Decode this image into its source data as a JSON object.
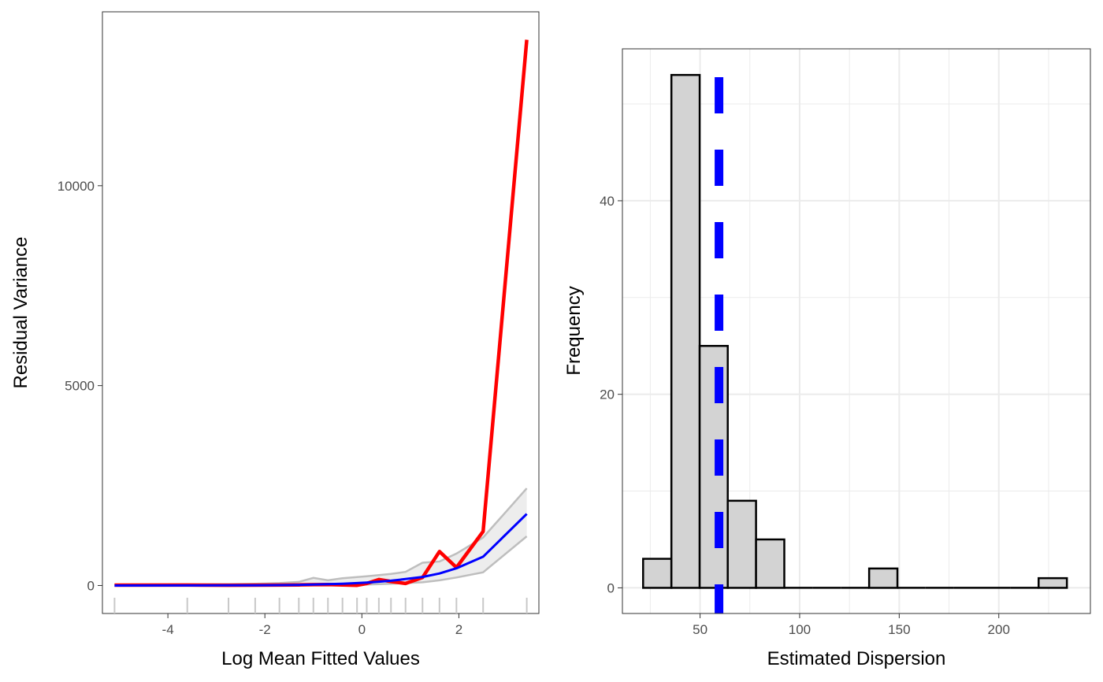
{
  "colors": {
    "observed": "#ff0000",
    "expected": "#0000ff",
    "band": "#ededed",
    "band_edge": "#bebebe",
    "hist_fill": "#d3d3d3",
    "hist_edge": "#000000",
    "dispersion_line": "#0000ff",
    "grid": "#ebebeb",
    "rug": "#c8c8c8"
  },
  "chart_data": [
    {
      "type": "line",
      "xlabel": "Log Mean Fitted Values",
      "ylabel": "Residual Variance",
      "xlim": [
        -5.35,
        3.65
      ],
      "ylim": [
        -700,
        14350
      ],
      "grid": false,
      "x_ticks": [
        -4,
        -2,
        0,
        2
      ],
      "x_tick_labels": [
        "-4",
        "-2",
        "0",
        "2"
      ],
      "y_ticks": [
        0,
        5000,
        10000
      ],
      "y_tick_labels": [
        "0",
        "5000",
        "10000"
      ],
      "x": [
        -5.1,
        -3.6,
        -2.75,
        -2.2,
        -1.7,
        -1.3,
        -1.0,
        -0.7,
        -0.4,
        -0.1,
        0.1,
        0.35,
        0.6,
        0.9,
        1.25,
        1.6,
        1.95,
        2.5,
        3.4
      ],
      "series": [
        {
          "role": "observed",
          "values": [
            10,
            12,
            8,
            10,
            12,
            15,
            20,
            25,
            15,
            5,
            50,
            150,
            100,
            50,
            200,
            850,
            450,
            1350,
            13650
          ]
        },
        {
          "role": "expected",
          "values": [
            0,
            1,
            3,
            6,
            10,
            15,
            22,
            32,
            45,
            60,
            75,
            95,
            120,
            160,
            215,
            300,
            430,
            720,
            1790
          ]
        }
      ],
      "band": {
        "lower": [
          0,
          0,
          1,
          2,
          4,
          6,
          8,
          10,
          14,
          18,
          25,
          35,
          45,
          60,
          80,
          130,
          200,
          330,
          1230
        ],
        "upper": [
          20,
          25,
          35,
          45,
          60,
          90,
          190,
          130,
          180,
          210,
          230,
          260,
          290,
          340,
          570,
          600,
          800,
          1200,
          2430
        ]
      },
      "rug_x": [
        -5.1,
        -3.6,
        -2.75,
        -2.2,
        -1.7,
        -1.3,
        -1.0,
        -0.7,
        -0.4,
        -0.1,
        0.1,
        0.35,
        0.6,
        0.9,
        1.25,
        1.6,
        1.95,
        2.5,
        3.4
      ]
    },
    {
      "type": "bar",
      "subtype": "histogram",
      "xlabel": "Estimated Dispersion",
      "ylabel": "Frequency",
      "xlim": [
        11,
        246
      ],
      "ylim": [
        -2.65,
        55.7
      ],
      "grid": true,
      "x_ticks": [
        50,
        100,
        150,
        200
      ],
      "x_tick_labels": [
        "50",
        "100",
        "150",
        "200"
      ],
      "y_ticks": [
        0,
        20,
        40
      ],
      "y_tick_labels": [
        "0",
        "20",
        "40"
      ],
      "y_minor_ticks": [
        10,
        30,
        50
      ],
      "bins": [
        {
          "x0": 21.4,
          "x1": 35.6,
          "count": 3
        },
        {
          "x0": 35.6,
          "x1": 49.8,
          "count": 53
        },
        {
          "x0": 49.8,
          "x1": 63.9,
          "count": 25
        },
        {
          "x0": 63.9,
          "x1": 78.1,
          "count": 9
        },
        {
          "x0": 78.1,
          "x1": 92.3,
          "count": 5
        },
        {
          "x0": 92.3,
          "x1": 106.5,
          "count": 0
        },
        {
          "x0": 106.5,
          "x1": 120.7,
          "count": 0
        },
        {
          "x0": 120.7,
          "x1": 134.9,
          "count": 0
        },
        {
          "x0": 134.9,
          "x1": 149.1,
          "count": 2
        },
        {
          "x0": 149.1,
          "x1": 163.2,
          "count": 0
        },
        {
          "x0": 163.2,
          "x1": 177.4,
          "count": 0
        },
        {
          "x0": 177.4,
          "x1": 191.6,
          "count": 0
        },
        {
          "x0": 191.6,
          "x1": 205.8,
          "count": 0
        },
        {
          "x0": 205.8,
          "x1": 220.0,
          "count": 0
        },
        {
          "x0": 220.0,
          "x1": 234.2,
          "count": 1
        }
      ],
      "reference_line": {
        "x": 59.5,
        "style": "dashed"
      }
    }
  ]
}
